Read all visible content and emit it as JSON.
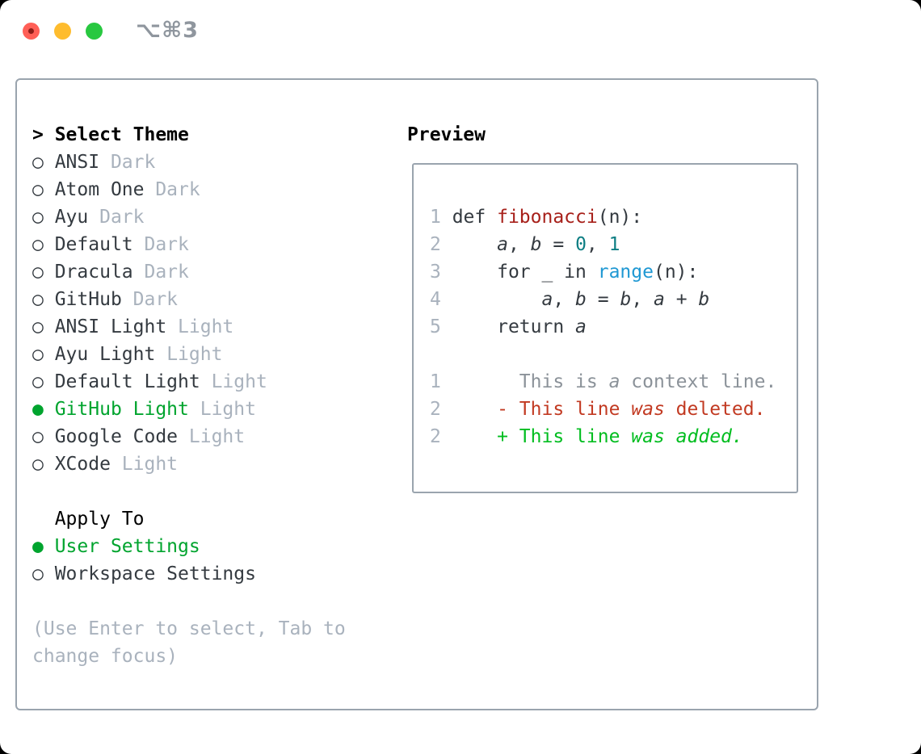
{
  "window": {
    "title": "⌥⌘3"
  },
  "colors": {
    "accent_green": "#00a42e",
    "diff_added": "#00bd1f",
    "diff_deleted": "#c23a22",
    "function_red": "#a7201a",
    "number_teal": "#0d7e83",
    "builtin_blue": "#1f98d3",
    "muted_gray": "#a9b2bd",
    "context_gray": "#8b9299",
    "text_dark": "#343a40",
    "border_gray": "#9aa4ae",
    "title_gray": "#8f969e",
    "light_red": "#ff5f57",
    "light_yellow": "#febc2e",
    "light_green": "#28c840"
  },
  "theme_list": {
    "header_prefix": "> ",
    "header": "Select Theme",
    "items": [
      {
        "name": "ANSI",
        "variant": "Dark",
        "selected": false
      },
      {
        "name": "Atom One",
        "variant": "Dark",
        "selected": false
      },
      {
        "name": "Ayu",
        "variant": "Dark",
        "selected": false
      },
      {
        "name": "Default",
        "variant": "Dark",
        "selected": false
      },
      {
        "name": "Dracula",
        "variant": "Dark",
        "selected": false
      },
      {
        "name": "GitHub",
        "variant": "Dark",
        "selected": false
      },
      {
        "name": "ANSI Light",
        "variant": "Light",
        "selected": false
      },
      {
        "name": "Ayu Light",
        "variant": "Light",
        "selected": false
      },
      {
        "name": "Default Light",
        "variant": "Light",
        "selected": false
      },
      {
        "name": "GitHub Light",
        "variant": "Light",
        "selected": true
      },
      {
        "name": "Google Code",
        "variant": "Light",
        "selected": false
      },
      {
        "name": "XCode",
        "variant": "Light",
        "selected": false
      }
    ]
  },
  "apply_to": {
    "header": "Apply To",
    "options": [
      {
        "label": "User Settings",
        "selected": true
      },
      {
        "label": "Workspace Settings",
        "selected": false
      }
    ]
  },
  "help_text": [
    "(Use Enter to select, Tab to",
    "change focus)"
  ],
  "preview": {
    "header": "Preview",
    "lines": [
      {
        "num": "1",
        "tokens": [
          {
            "t": "def ",
            "c": "code"
          },
          {
            "t": "fibonacci",
            "c": "func"
          },
          {
            "t": "(n):",
            "c": "code"
          }
        ]
      },
      {
        "num": "2",
        "tokens": [
          {
            "t": "    ",
            "c": "code"
          },
          {
            "t": "a",
            "c": "var"
          },
          {
            "t": ", ",
            "c": "code"
          },
          {
            "t": "b",
            "c": "var"
          },
          {
            "t": " = ",
            "c": "code"
          },
          {
            "t": "0",
            "c": "num"
          },
          {
            "t": ", ",
            "c": "code"
          },
          {
            "t": "1",
            "c": "num"
          }
        ]
      },
      {
        "num": "3",
        "tokens": [
          {
            "t": "    for _ in ",
            "c": "code"
          },
          {
            "t": "range",
            "c": "builtin"
          },
          {
            "t": "(n):",
            "c": "code"
          }
        ]
      },
      {
        "num": "4",
        "tokens": [
          {
            "t": "        ",
            "c": "code"
          },
          {
            "t": "a",
            "c": "var"
          },
          {
            "t": ", ",
            "c": "code"
          },
          {
            "t": "b",
            "c": "var"
          },
          {
            "t": " = ",
            "c": "code"
          },
          {
            "t": "b",
            "c": "var"
          },
          {
            "t": ", ",
            "c": "code"
          },
          {
            "t": "a",
            "c": "var"
          },
          {
            "t": " + ",
            "c": "code"
          },
          {
            "t": "b",
            "c": "var"
          }
        ]
      },
      {
        "num": "5",
        "tokens": [
          {
            "t": "    return ",
            "c": "code"
          },
          {
            "t": "a",
            "c": "var"
          }
        ]
      },
      {
        "num": "",
        "tokens": []
      },
      {
        "num": "1",
        "tokens": [
          {
            "t": "      This is ",
            "c": "ctx"
          },
          {
            "t": "a",
            "c": "ctx-i"
          },
          {
            "t": " context line.",
            "c": "ctx"
          }
        ]
      },
      {
        "num": "2",
        "tokens": [
          {
            "t": "    ",
            "c": "code"
          },
          {
            "t": "- This line ",
            "c": "del"
          },
          {
            "t": "was",
            "c": "del-i"
          },
          {
            "t": " deleted.",
            "c": "del"
          }
        ]
      },
      {
        "num": "2",
        "tokens": [
          {
            "t": "    ",
            "c": "code"
          },
          {
            "t": "+ This line ",
            "c": "add"
          },
          {
            "t": "was",
            "c": "add-i"
          },
          {
            "t": " ",
            "c": "add"
          },
          {
            "t": "added.",
            "c": "add-i"
          }
        ]
      }
    ]
  }
}
